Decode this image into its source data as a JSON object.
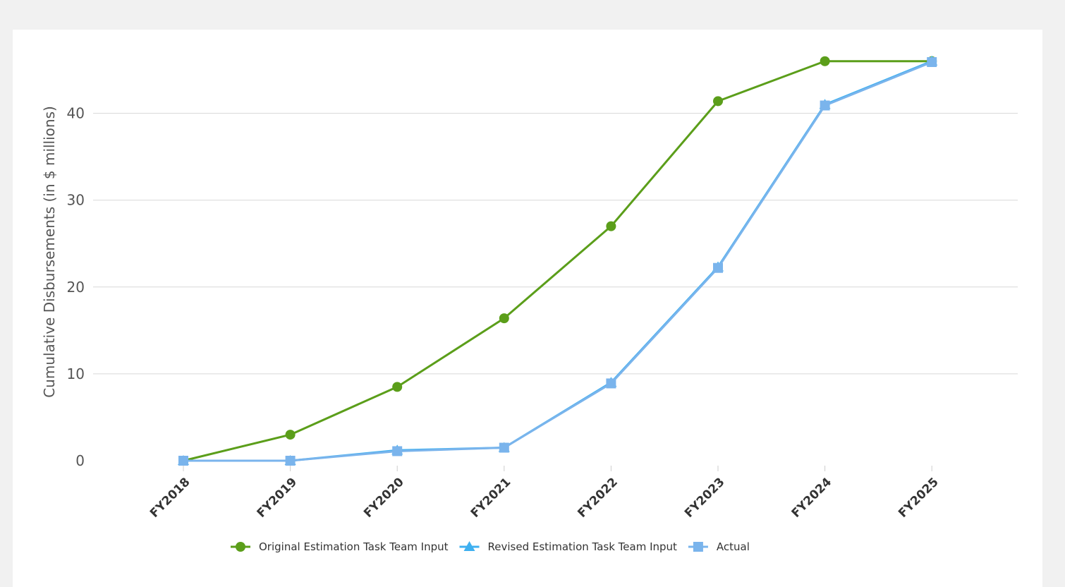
{
  "chart_data": {
    "type": "line",
    "title": "",
    "xlabel": "",
    "ylabel": "Cumulative Disbursements (in $ millions)",
    "categories": [
      "FY2018",
      "FY2019",
      "FY2020",
      "FY2021",
      "FY2022",
      "FY2023",
      "FY2024",
      "FY2025"
    ],
    "ylim": [
      0,
      46
    ],
    "yticks": [
      "0",
      "10",
      "20",
      "30",
      "40"
    ],
    "grid": true,
    "legend_position": "bottom",
    "series": [
      {
        "name": "Original Estimation Task Team Input",
        "values": [
          0,
          3,
          8.5,
          16.4,
          27,
          41.4,
          46,
          46
        ],
        "color": "#5b9e1a",
        "marker": "circle"
      },
      {
        "name": "Revised Estimation Task Team Input",
        "values": [
          0,
          0,
          1.2,
          1.5,
          9,
          22.3,
          41,
          46
        ],
        "color": "#3fb0f0",
        "marker": "triangle"
      },
      {
        "name": "Actual",
        "values": [
          0,
          0,
          1.1,
          1.5,
          8.9,
          22.2,
          40.9,
          45.9
        ],
        "color": "#7ab4ec",
        "marker": "square"
      }
    ]
  }
}
